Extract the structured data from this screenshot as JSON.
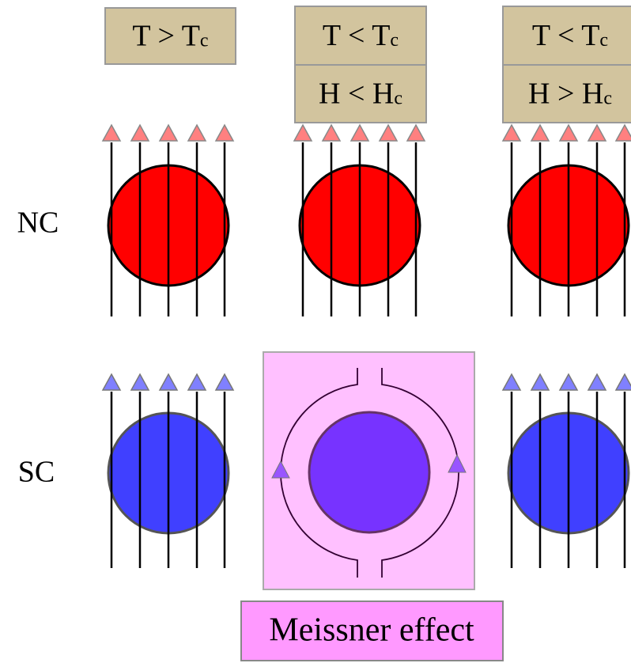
{
  "columns": [
    {
      "conditions": [
        {
          "text": "T > T",
          "sub": "c"
        }
      ]
    },
    {
      "conditions": [
        {
          "text": "T < T",
          "sub": "c"
        },
        {
          "text": "H < H",
          "sub": "c"
        }
      ]
    },
    {
      "conditions": [
        {
          "text": "T < T",
          "sub": "c"
        },
        {
          "text": "H > H",
          "sub": "c"
        }
      ]
    }
  ],
  "rows": [
    {
      "label": "NC"
    },
    {
      "label": "SC"
    }
  ],
  "meissner_label": "Meissner effect"
}
